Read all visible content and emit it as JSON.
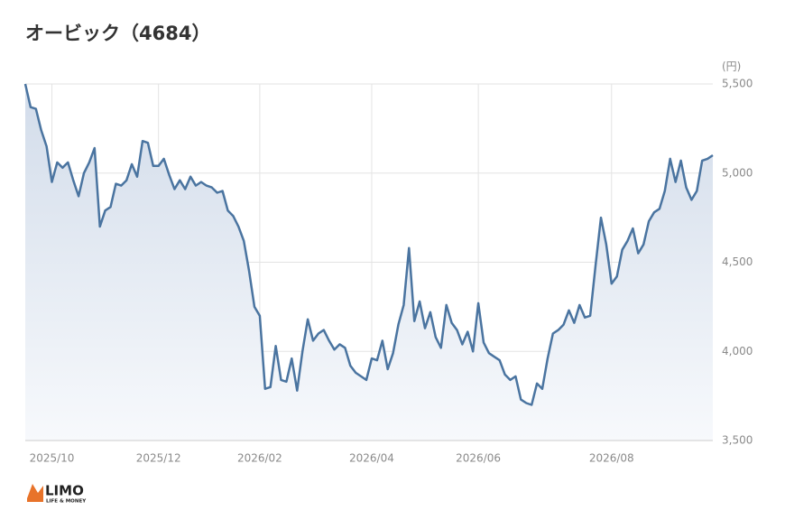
{
  "chart_data": {
    "type": "line",
    "title": "オービック（4684）",
    "y_unit": "(円)",
    "categories": [
      null,
      null,
      null,
      null,
      null,
      "2025/10",
      null,
      null,
      null,
      null,
      null,
      null,
      null,
      null,
      null,
      null,
      null,
      null,
      null,
      null,
      null,
      null,
      null,
      null,
      null,
      "2025/12",
      null,
      null,
      null,
      null,
      null,
      null,
      null,
      null,
      null,
      null,
      null,
      null,
      null,
      null,
      null,
      null,
      null,
      null,
      "2026/02",
      null,
      null,
      null,
      null,
      null,
      null,
      null,
      null,
      null,
      null,
      null,
      null,
      null,
      null,
      null,
      null,
      null,
      null,
      null,
      null,
      "2026/04",
      null,
      null,
      null,
      null,
      null,
      null,
      null,
      null,
      null,
      null,
      null,
      null,
      null,
      null,
      null,
      null,
      null,
      null,
      null,
      "2026/06",
      null,
      null,
      null,
      null,
      null,
      null,
      null,
      null,
      null,
      null,
      null,
      null,
      null,
      null,
      null,
      null,
      null,
      null,
      null,
      null,
      null,
      null,
      null,
      null,
      "2026/08",
      null,
      null,
      null,
      null,
      null,
      null,
      null,
      null,
      null,
      null,
      null,
      null,
      null,
      null,
      null,
      null,
      null,
      null,
      null
    ],
    "series": [
      {
        "color": "#4a74a0",
        "values": [
          5500,
          5370,
          5360,
          5240,
          5150,
          4950,
          5060,
          5030,
          5060,
          4960,
          4870,
          5000,
          5060,
          5140,
          4700,
          4790,
          4810,
          4940,
          4930,
          4960,
          5050,
          4980,
          5180,
          5170,
          5040,
          5040,
          5080,
          4990,
          4910,
          4960,
          4910,
          4980,
          4930,
          4950,
          4930,
          4920,
          4890,
          4900,
          4790,
          4760,
          4700,
          4620,
          4450,
          4250,
          4200,
          3790,
          3800,
          4030,
          3840,
          3830,
          3960,
          3780,
          4000,
          4180,
          4060,
          4100,
          4120,
          4060,
          4010,
          4040,
          4020,
          3920,
          3880,
          3860,
          3840,
          3960,
          3950,
          4060,
          3900,
          3990,
          4150,
          4260,
          4580,
          4170,
          4280,
          4130,
          4220,
          4080,
          4020,
          4260,
          4160,
          4120,
          4040,
          4110,
          4000,
          4270,
          4050,
          3990,
          3970,
          3950,
          3870,
          3840,
          3860,
          3730,
          3710,
          3700,
          3820,
          3790,
          3960,
          4100,
          4120,
          4150,
          4230,
          4160,
          4260,
          4190,
          4200,
          4480,
          4750,
          4600,
          4380,
          4420,
          4570,
          4620,
          4690,
          4550,
          4600,
          4730,
          4780,
          4800,
          4900,
          5080,
          4950,
          5070,
          4920,
          4850,
          4900,
          5070,
          5080,
          5100
        ]
      }
    ],
    "ylim": [
      3500,
      5500
    ],
    "yticks": [
      {
        "value": 3500,
        "label": "3,500"
      },
      {
        "value": 4000,
        "label": "4,000"
      },
      {
        "value": 4500,
        "label": "4,500"
      },
      {
        "value": 5000,
        "label": "5,000"
      },
      {
        "value": 5500,
        "label": "5,500"
      }
    ],
    "grid": true
  },
  "logo": {
    "name": "LIMO",
    "tagline": "LIFE & MONEY"
  }
}
